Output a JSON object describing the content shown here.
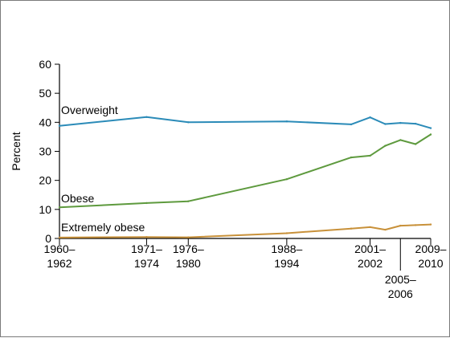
{
  "chart_data": {
    "type": "line",
    "title": "",
    "xlabel": "",
    "ylabel": "Percent",
    "ylim": [
      0,
      60
    ],
    "y_ticks": [
      0,
      10,
      20,
      30,
      40,
      50,
      60
    ],
    "x": [
      1961,
      1972.5,
      1978,
      1991,
      1999.5,
      2002,
      2004,
      2006,
      2008,
      2010
    ],
    "x_tick_labels": [
      {
        "x": 1961,
        "line1": "1960–",
        "line2": "1962",
        "position": "above-axis"
      },
      {
        "x": 1972.5,
        "line1": "1971–",
        "line2": "1974",
        "position": "above-axis"
      },
      {
        "x": 1978,
        "line1": "1976–",
        "line2": "1980",
        "position": "above-axis"
      },
      {
        "x": 1991,
        "line1": "1988–",
        "line2": "1994",
        "position": "above-axis"
      },
      {
        "x": 2002,
        "line1": "2001–",
        "line2": "2002",
        "position": "above-axis"
      },
      {
        "x": 2006,
        "line1": "2005–",
        "line2": "2006",
        "position": "below-leader"
      },
      {
        "x": 2010,
        "line1": "2009–",
        "line2": "2010",
        "position": "above-axis"
      }
    ],
    "grid": false,
    "series": [
      {
        "name": "Overweight",
        "color": "#2b8bb8",
        "values": [
          38.8,
          41.8,
          40.0,
          40.3,
          39.3,
          41.7,
          39.4,
          39.8,
          39.5,
          38.0
        ]
      },
      {
        "name": "Obese",
        "color": "#5e9a3e",
        "values": [
          10.7,
          12.2,
          12.8,
          20.4,
          27.9,
          28.5,
          31.9,
          33.9,
          32.5,
          35.8
        ]
      },
      {
        "name": "Extremely obese",
        "color": "#c8913a",
        "values": [
          0.3,
          0.5,
          0.4,
          1.8,
          3.4,
          3.9,
          3.0,
          4.4,
          4.6,
          4.8
        ]
      }
    ]
  }
}
